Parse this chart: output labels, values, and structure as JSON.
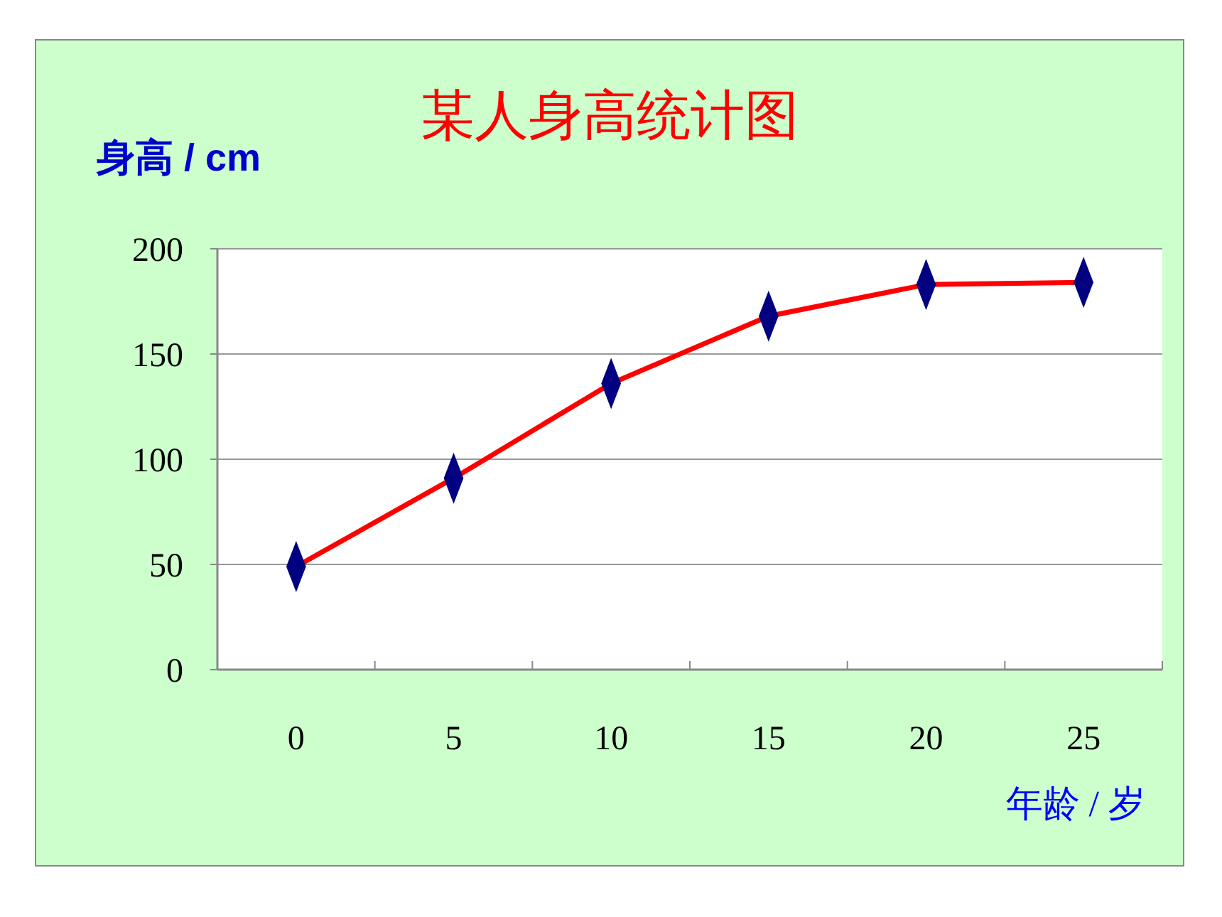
{
  "chart_data": {
    "type": "line",
    "title": "某人身高统计图",
    "ylabel": "身高 / cm",
    "xlabel": "年龄 / 岁",
    "categories": [
      "0",
      "5",
      "10",
      "15",
      "20",
      "25"
    ],
    "series": [
      {
        "color": "#ff0000",
        "values": [
          49,
          91,
          136,
          168,
          183,
          184
        ]
      }
    ],
    "ylim": [
      0,
      200
    ],
    "yticks": [
      0,
      50,
      100,
      150,
      200
    ],
    "grid": "y",
    "marker": "diamond",
    "line_style": "solid"
  }
}
